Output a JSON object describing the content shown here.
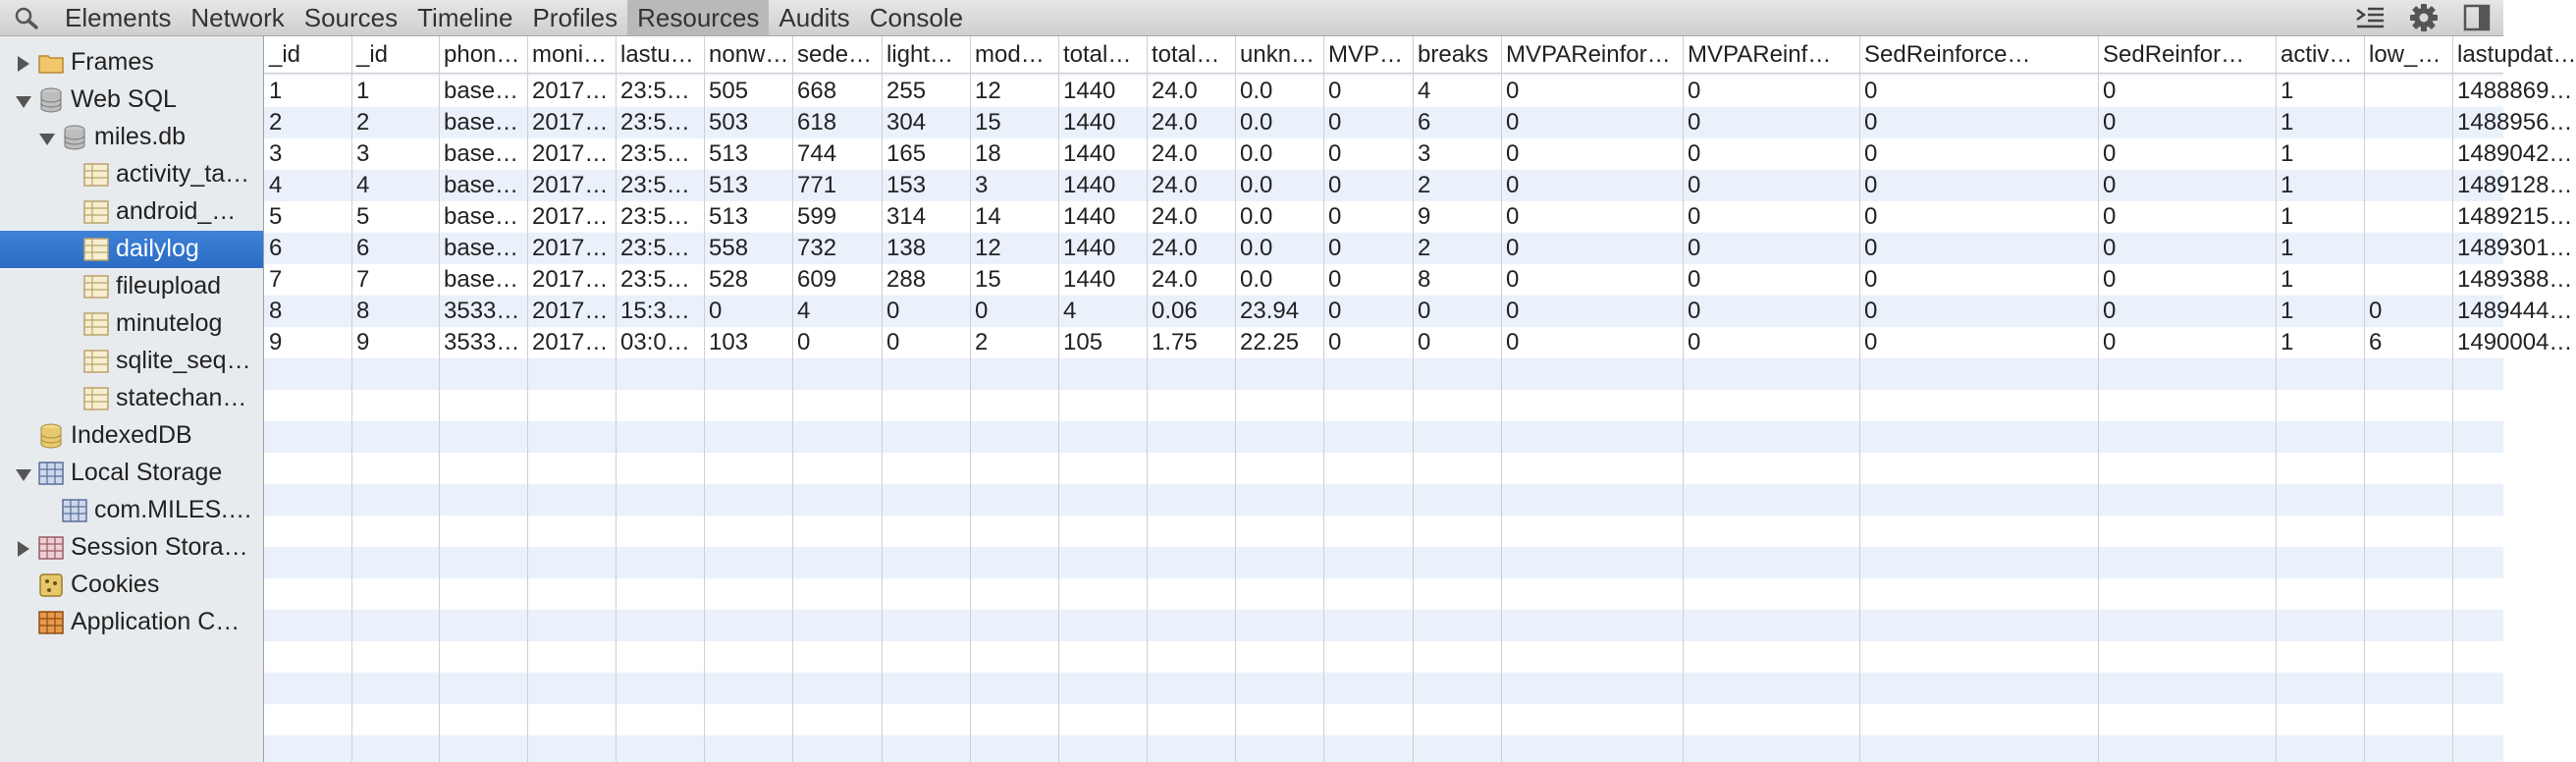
{
  "toolbar": {
    "search_icon": "search-icon",
    "tabs": [
      "Elements",
      "Network",
      "Sources",
      "Timeline",
      "Profiles",
      "Resources",
      "Audits",
      "Console"
    ],
    "active_tab": "Resources",
    "right_icons": [
      "console-drawer-icon",
      "gear-icon",
      "dock-icon"
    ]
  },
  "sidebar": {
    "items": [
      {
        "label": "Frames",
        "icon": "folder-icon"
      },
      {
        "label": "Web SQL",
        "icon": "database-icon"
      },
      {
        "label": "miles.db",
        "icon": "database-icon"
      },
      {
        "label": "activity_ta…",
        "icon": "table-icon"
      },
      {
        "label": "android_…",
        "icon": "table-icon"
      },
      {
        "label": "dailylog",
        "icon": "table-icon"
      },
      {
        "label": "fileupload",
        "icon": "table-icon"
      },
      {
        "label": "minutelog",
        "icon": "table-icon"
      },
      {
        "label": "sqlite_seq…",
        "icon": "table-icon"
      },
      {
        "label": "statechan…",
        "icon": "table-icon"
      },
      {
        "label": "IndexedDB",
        "icon": "database-icon"
      },
      {
        "label": "Local Storage",
        "icon": "grid-icon"
      },
      {
        "label": "com.MILES.…",
        "icon": "grid-icon"
      },
      {
        "label": "Session Stora…",
        "icon": "grid-icon"
      },
      {
        "label": "Cookies",
        "icon": "cookie-icon"
      },
      {
        "label": "Application C…",
        "icon": "appcache-icon"
      }
    ],
    "selected": "dailylog"
  },
  "table": {
    "headers": [
      "_id",
      "_id",
      "phon…",
      "moni…",
      "lastu…",
      "nonw…",
      "sede…",
      "light…",
      "mod…",
      "total…",
      "total…",
      "unkn…",
      "MVP…",
      "breaks",
      "MVPAReinfor…",
      "MVPAReinf…",
      "SedReinforce…",
      "SedReinfor…",
      "activ…",
      "low_…",
      "lastupdat…"
    ],
    "rows": [
      [
        "1",
        "1",
        "base…",
        "2017…",
        "23:5…",
        "505",
        "668",
        "255",
        "12",
        "1440",
        "24.0",
        "0.0",
        "0",
        "4",
        "0",
        "0",
        "0",
        "0",
        "1",
        "",
        "1488869…"
      ],
      [
        "2",
        "2",
        "base…",
        "2017…",
        "23:5…",
        "503",
        "618",
        "304",
        "15",
        "1440",
        "24.0",
        "0.0",
        "0",
        "6",
        "0",
        "0",
        "0",
        "0",
        "1",
        "",
        "1488956…"
      ],
      [
        "3",
        "3",
        "base…",
        "2017…",
        "23:5…",
        "513",
        "744",
        "165",
        "18",
        "1440",
        "24.0",
        "0.0",
        "0",
        "3",
        "0",
        "0",
        "0",
        "0",
        "1",
        "",
        "1489042…"
      ],
      [
        "4",
        "4",
        "base…",
        "2017…",
        "23:5…",
        "513",
        "771",
        "153",
        "3",
        "1440",
        "24.0",
        "0.0",
        "0",
        "2",
        "0",
        "0",
        "0",
        "0",
        "1",
        "",
        "1489128…"
      ],
      [
        "5",
        "5",
        "base…",
        "2017…",
        "23:5…",
        "513",
        "599",
        "314",
        "14",
        "1440",
        "24.0",
        "0.0",
        "0",
        "9",
        "0",
        "0",
        "0",
        "0",
        "1",
        "",
        "1489215…"
      ],
      [
        "6",
        "6",
        "base…",
        "2017…",
        "23:5…",
        "558",
        "732",
        "138",
        "12",
        "1440",
        "24.0",
        "0.0",
        "0",
        "2",
        "0",
        "0",
        "0",
        "0",
        "1",
        "",
        "1489301…"
      ],
      [
        "7",
        "7",
        "base…",
        "2017…",
        "23:5…",
        "528",
        "609",
        "288",
        "15",
        "1440",
        "24.0",
        "0.0",
        "0",
        "8",
        "0",
        "0",
        "0",
        "0",
        "1",
        "",
        "1489388…"
      ],
      [
        "8",
        "8",
        "3533…",
        "2017…",
        "15:3…",
        "0",
        "4",
        "0",
        "0",
        "4",
        "0.06",
        "23.94",
        "0",
        "0",
        "0",
        "0",
        "0",
        "0",
        "1",
        "0",
        "1489444…"
      ],
      [
        "9",
        "9",
        "3533…",
        "2017…",
        "03:0…",
        "103",
        "0",
        "0",
        "2",
        "105",
        "1.75",
        "22.25",
        "0",
        "0",
        "0",
        "0",
        "0",
        "0",
        "1",
        "6",
        "1490004…"
      ]
    ]
  }
}
